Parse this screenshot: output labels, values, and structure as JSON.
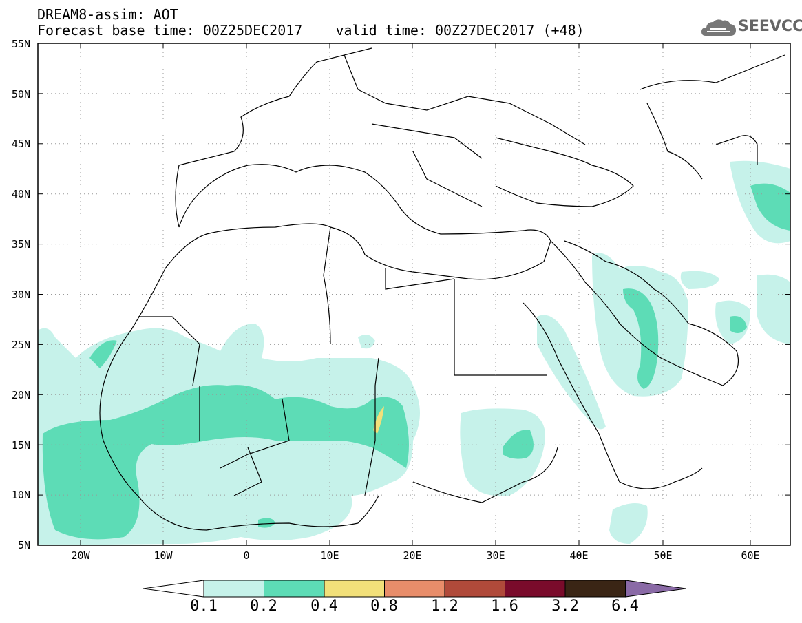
{
  "header": {
    "line1": "DREAM8-assim: AOT",
    "line2": "Forecast base time: 00Z25DEC2017    valid time: 00Z27DEC2017 (+48)"
  },
  "logo": {
    "text": "SEEVCCC",
    "icon": "cloud-icon",
    "color": "#666666"
  },
  "map": {
    "lat_labels": [
      "55N",
      "50N",
      "45N",
      "40N",
      "35N",
      "30N",
      "25N",
      "20N",
      "15N",
      "10N",
      "5N"
    ],
    "lon_labels": [
      "20W",
      "10W",
      "0",
      "10E",
      "20E",
      "30E",
      "40E",
      "50E",
      "60E"
    ]
  },
  "colorbar": {
    "labels": [
      "0.1",
      "0.2",
      "0.4",
      "0.8",
      "1.2",
      "1.6",
      "3.2",
      "6.4"
    ],
    "colors": [
      "#ffffff",
      "#c6f2ea",
      "#5ddcb6",
      "#f2e07a",
      "#e88d6a",
      "#b04a3a",
      "#7a0b2b",
      "#3a2515",
      "#8a6aa6"
    ]
  }
}
